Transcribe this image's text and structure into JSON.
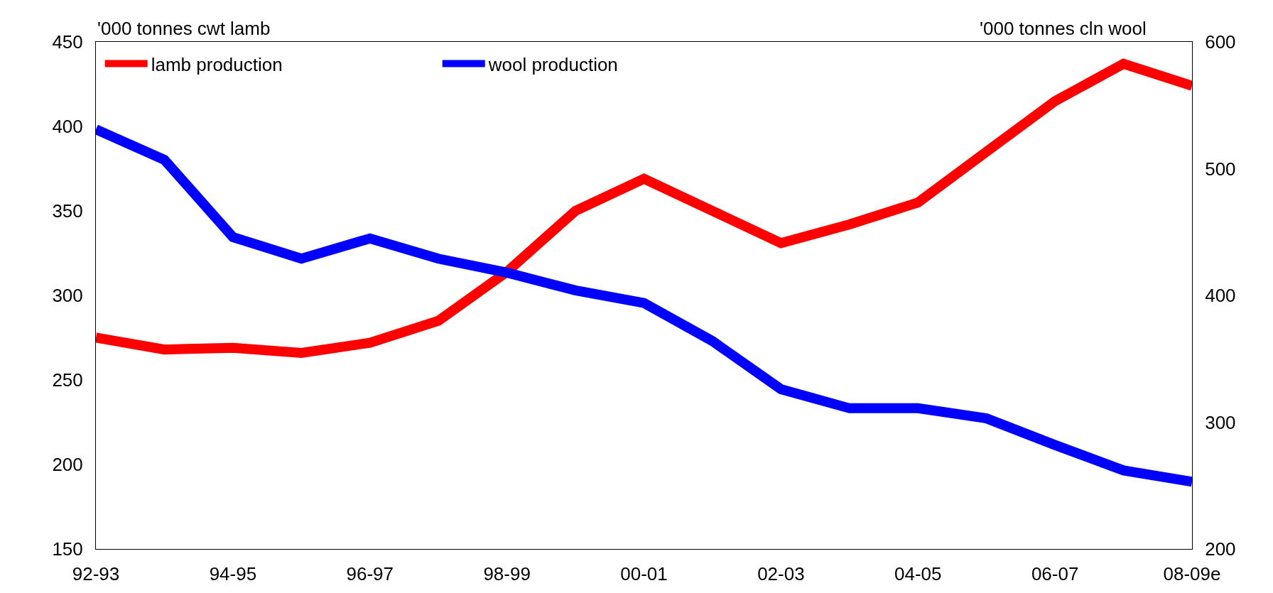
{
  "chart_data": {
    "type": "line",
    "ylabel": "'000 tonnes cwt lamb",
    "y2label": "'000 tonnes cln wool",
    "categories": [
      "92-93",
      null,
      "94-95",
      null,
      "96-97",
      null,
      "98-99",
      null,
      "00-01",
      null,
      "02-03",
      null,
      "04-05",
      null,
      "06-07",
      null,
      "08-09e"
    ],
    "series": [
      {
        "name": "lamb production",
        "color": "#ff0000",
        "values": [
          275,
          268,
          269,
          266,
          272,
          285,
          314,
          350,
          369,
          350,
          331,
          342,
          355,
          385,
          415,
          437,
          424
        ]
      },
      {
        "name": "wool production",
        "color": "#0000ff",
        "axis": "y2",
        "values": [
          531,
          507,
          446,
          429,
          445,
          429,
          418,
          404,
          394,
          364,
          326,
          311,
          311,
          303,
          282,
          262,
          253
        ]
      }
    ],
    "ylim": [
      150,
      450
    ],
    "yticks": [
      150,
      200,
      250,
      300,
      350,
      400,
      450
    ],
    "y2lim": [
      200,
      600
    ],
    "y2ticks": [
      200,
      300,
      400,
      500,
      600
    ],
    "legend": "top left",
    "marker": "none",
    "line_style": "solid"
  }
}
